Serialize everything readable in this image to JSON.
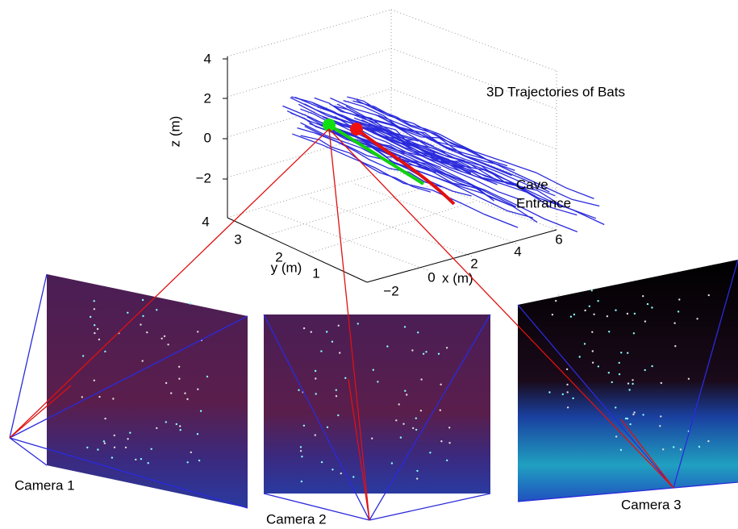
{
  "figure": {
    "title": "3D Trajectories of Bats",
    "annotation": [
      "Cave",
      "Entrance"
    ],
    "z_axis": {
      "label": "z (m)",
      "ticks": [
        "4",
        "2",
        "0",
        "−2"
      ]
    },
    "y_axis": {
      "label": "y (m)",
      "ticks": [
        "4",
        "3",
        "2",
        "1"
      ]
    },
    "x_axis": {
      "label": "x (m)",
      "ticks": [
        "−2",
        "0",
        "2",
        "4",
        "6"
      ]
    },
    "cameras": [
      "Camera 1",
      "Camera 2",
      "Camera 3"
    ]
  }
}
